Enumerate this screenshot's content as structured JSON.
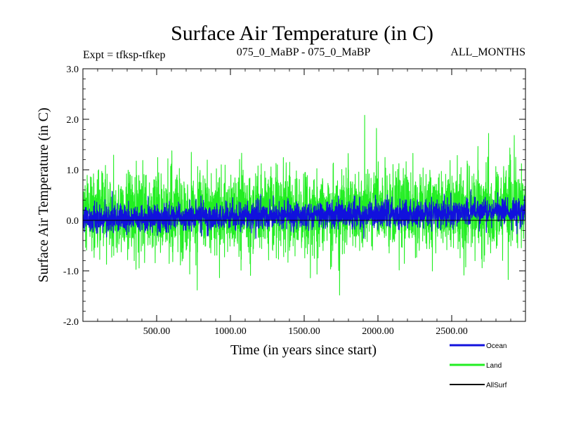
{
  "chart_data": {
    "type": "line",
    "title": "Surface Air Temperature (in C)",
    "subtitle_left": "Expt = tfksp-tfkep",
    "subtitle_center": "075_0_MaBP - 075_0_MaBP",
    "subtitle_right": "ALL_MONTHS",
    "xlabel": "Time (in years since start)",
    "ylabel": "Surface Air Temperature (in C)",
    "xlim": [
      0,
      3000
    ],
    "ylim": [
      -2.0,
      3.0
    ],
    "x_ticks": [
      500,
      1000,
      1500,
      2000,
      2500
    ],
    "x_tick_labels": [
      "500.00",
      "1000.00",
      "1500.00",
      "2000.00",
      "2500.00"
    ],
    "y_ticks": [
      -2.0,
      -1.0,
      0.0,
      1.0,
      2.0,
      3.0
    ],
    "y_tick_labels": [
      "-2.0",
      "-1.0",
      "0.0",
      "1.0",
      "2.0",
      "3.0"
    ],
    "zero_line": 0.0,
    "legend_position": "bottom-right",
    "series": [
      {
        "name": "Land",
        "color": "#22ee22",
        "description": "noisy annual series",
        "start_mean": 0.08,
        "end_mean": 0.28,
        "typical_range": [
          -1.2,
          1.5
        ],
        "extremes": [
          {
            "x": 775,
            "y": -1.38
          },
          {
            "x": 1740,
            "y": -1.48
          },
          {
            "x": 1910,
            "y": 2.08
          },
          {
            "x": 1990,
            "y": 1.82
          },
          {
            "x": 2750,
            "y": 1.72
          }
        ]
      },
      {
        "name": "Ocean",
        "color": "#1111dd",
        "description": "noisy annual series",
        "start_mean": 0.03,
        "end_mean": 0.18,
        "typical_range": [
          -0.3,
          0.55
        ]
      },
      {
        "name": "AllSurf",
        "color": "#000000",
        "description": "series",
        "start_mean": 0.0,
        "end_mean": 0.0,
        "typical_range": [
          0.0,
          0.0
        ]
      }
    ]
  }
}
